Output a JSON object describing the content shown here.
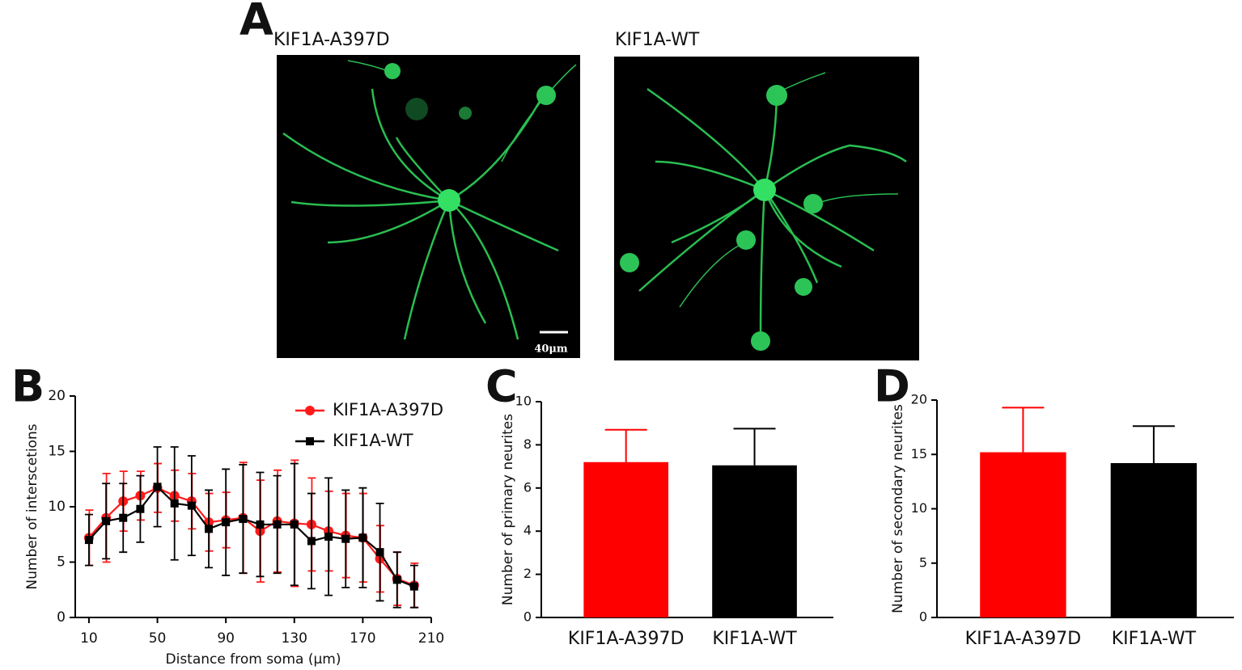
{
  "panel_a": {
    "label": "A",
    "images": [
      {
        "title": "KIF1A-A397D",
        "scale_bar": "40μm"
      },
      {
        "title": "KIF1A-WT"
      }
    ]
  },
  "chart_data": [
    {
      "type": "line",
      "panel_label": "B",
      "xlabel": "Distance from soma (μm)",
      "ylabel": "Number of interscetions",
      "x": [
        10,
        20,
        30,
        40,
        50,
        60,
        70,
        80,
        90,
        100,
        110,
        120,
        130,
        140,
        150,
        160,
        170,
        180,
        190,
        200
      ],
      "xlim": [
        2,
        210
      ],
      "xticks": [
        10,
        50,
        90,
        130,
        170,
        210
      ],
      "ylim": [
        0,
        20
      ],
      "yticks": [
        0,
        5,
        10,
        15,
        20
      ],
      "legend": "upper right",
      "series": [
        {
          "name": "KIF1A-A397D",
          "color": "#ff1a1a",
          "marker": "circle",
          "values": [
            7.2,
            9.0,
            10.5,
            11.0,
            11.7,
            11.0,
            10.5,
            8.6,
            8.8,
            9.0,
            7.8,
            8.7,
            8.5,
            8.4,
            7.8,
            7.4,
            7.2,
            5.3,
            3.5,
            2.9
          ],
          "errors": [
            2.5,
            4.0,
            2.7,
            2.2,
            2.2,
            2.3,
            2.5,
            2.6,
            2.5,
            5.0,
            4.6,
            4.6,
            5.7,
            4.2,
            3.6,
            3.8,
            4.0,
            3.0,
            2.4,
            2.0
          ]
        },
        {
          "name": "KIF1A-WT",
          "color": "#000000",
          "marker": "square",
          "values": [
            7.0,
            8.7,
            9.0,
            9.8,
            11.8,
            10.3,
            10.1,
            8.0,
            8.6,
            8.9,
            8.4,
            8.4,
            8.4,
            6.9,
            7.3,
            7.1,
            7.2,
            5.9,
            3.4,
            2.8
          ],
          "errors": [
            2.3,
            3.4,
            3.1,
            3.0,
            3.6,
            5.1,
            4.5,
            3.5,
            4.8,
            4.9,
            4.7,
            4.4,
            5.5,
            4.3,
            5.3,
            4.4,
            4.5,
            4.4,
            2.5,
            1.9
          ]
        }
      ]
    },
    {
      "type": "bar",
      "panel_label": "C",
      "ylabel": "Number of primary neurites",
      "categories": [
        "KIF1A-A397D",
        "KIF1A-WT"
      ],
      "values": [
        7.2,
        7.05
      ],
      "errors": [
        1.5,
        1.7
      ],
      "colors": [
        "#ff0000",
        "#000000"
      ],
      "ylim": [
        0,
        10
      ],
      "yticks": [
        0,
        2,
        4,
        6,
        8,
        10
      ]
    },
    {
      "type": "bar",
      "panel_label": "D",
      "ylabel": "Number of secondary neurites",
      "categories": [
        "KIF1A-A397D",
        "KIF1A-WT"
      ],
      "values": [
        15.2,
        14.2
      ],
      "errors": [
        4.1,
        3.4
      ],
      "colors": [
        "#ff0000",
        "#000000"
      ],
      "ylim": [
        0,
        20
      ],
      "yticks": [
        0,
        5,
        10,
        15,
        20
      ]
    }
  ]
}
